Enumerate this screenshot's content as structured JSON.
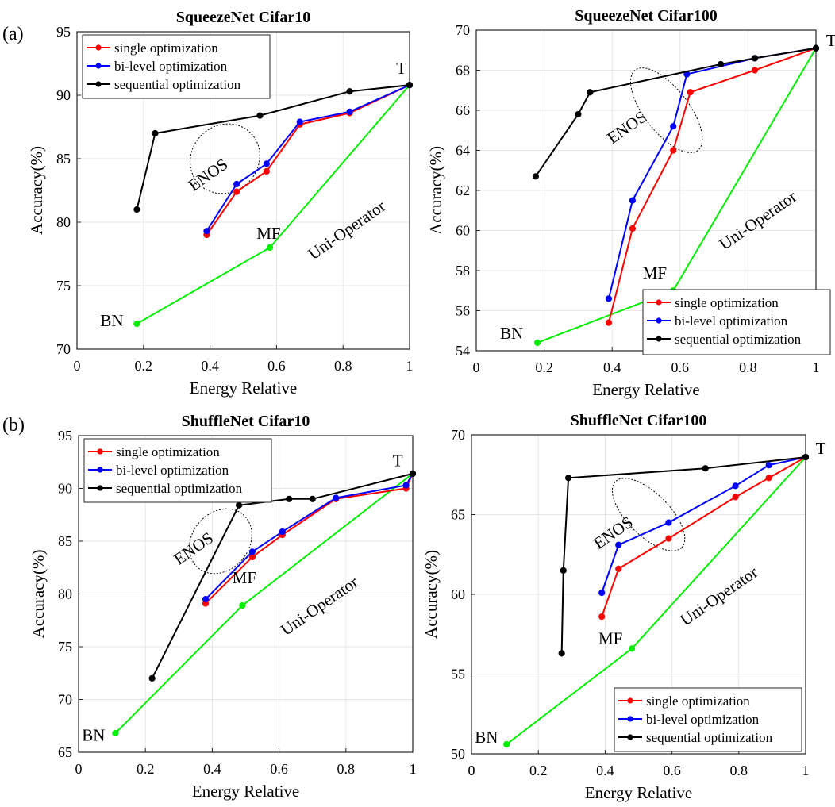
{
  "panel_labels": {
    "a": "(a)",
    "b": "(b)"
  },
  "chart_data": [
    {
      "type": "line",
      "title": "SqueezeNet Cifar10",
      "xlabel": "Energy Relative",
      "ylabel": "Accuracy(%)",
      "xlim": [
        0,
        1
      ],
      "ylim": [
        70,
        95
      ],
      "xticks": [
        0,
        0.2,
        0.4,
        0.6,
        0.8,
        1
      ],
      "xtick_labels": [
        "0",
        "0.2",
        "0.4",
        "0.6",
        "0.8",
        "1"
      ],
      "yticks": [
        70,
        75,
        80,
        85,
        90,
        95
      ],
      "ytick_labels": [
        "70",
        "75",
        "80",
        "85",
        "90",
        "95"
      ],
      "legend_position": "top-left",
      "series": [
        {
          "name": "single optimization",
          "color": "#ff0000",
          "x": [
            0.39,
            0.48,
            0.57,
            0.67,
            0.82,
            1.0
          ],
          "y": [
            79.0,
            82.4,
            84.0,
            87.7,
            88.6,
            90.8
          ]
        },
        {
          "name": "bi-level optimization",
          "color": "#0000ff",
          "x": [
            0.39,
            0.48,
            0.57,
            0.67,
            0.82,
            1.0
          ],
          "y": [
            79.3,
            83.0,
            84.6,
            87.9,
            88.7,
            90.8
          ]
        },
        {
          "name": "sequential optimization",
          "color": "#000000",
          "x": [
            0.18,
            0.235,
            0.55,
            0.82,
            1.0
          ],
          "y": [
            81.0,
            87.0,
            88.4,
            90.3,
            90.8
          ]
        },
        {
          "name": "Uni-Operator",
          "color": "#00ee00",
          "in_legend": false,
          "x": [
            0.18,
            0.58,
            1.0
          ],
          "y": [
            72.0,
            78.0,
            90.8
          ]
        }
      ],
      "annotations": [
        {
          "text": "T",
          "x": 0.96,
          "y": 91.7
        },
        {
          "text": "MF",
          "x": 0.54,
          "y": 78.7
        },
        {
          "text": "BN",
          "x": 0.07,
          "y": 71.8
        },
        {
          "text": "ENOS",
          "x": 0.35,
          "y": 82.4,
          "rotate": -35
        },
        {
          "text": "Uni-Operator",
          "x": 0.71,
          "y": 77.0,
          "rotate": -35
        }
      ],
      "ellipse": {
        "cx": 0.445,
        "cy": 85.0,
        "rx": 0.1,
        "ry": 1.3,
        "rotate": 45
      }
    },
    {
      "type": "line",
      "title": "SqueezeNet Cifar100",
      "xlabel": "Energy Relative",
      "ylabel": "Accuracy(%)",
      "xlim": [
        0,
        1
      ],
      "ylim": [
        54,
        70
      ],
      "xticks": [
        0,
        0.2,
        0.4,
        0.6,
        0.8,
        1
      ],
      "xtick_labels": [
        "0",
        "0.2",
        "0.4",
        "0.6",
        "0.8",
        "1"
      ],
      "yticks": [
        54,
        56,
        58,
        60,
        62,
        64,
        66,
        68,
        70
      ],
      "ytick_labels": [
        "54",
        "56",
        "58",
        "60",
        "62",
        "64",
        "66",
        "68",
        "70"
      ],
      "legend_position": "bottom-right",
      "series": [
        {
          "name": "single optimization",
          "color": "#ff0000",
          "x": [
            0.39,
            0.46,
            0.58,
            0.63,
            0.82,
            1.0
          ],
          "y": [
            55.4,
            60.1,
            64.0,
            66.9,
            68.0,
            69.1
          ]
        },
        {
          "name": "bi-level optimization",
          "color": "#0000ff",
          "x": [
            0.39,
            0.46,
            0.58,
            0.62,
            0.82,
            1.0
          ],
          "y": [
            56.6,
            61.5,
            65.2,
            67.8,
            68.6,
            69.1
          ]
        },
        {
          "name": "sequential optimization",
          "color": "#000000",
          "x": [
            0.175,
            0.3,
            0.335,
            0.72,
            0.82,
            1.0
          ],
          "y": [
            62.7,
            65.8,
            66.9,
            68.3,
            68.6,
            69.1
          ]
        },
        {
          "name": "Uni-Operator",
          "color": "#00ee00",
          "in_legend": false,
          "x": [
            0.18,
            0.58,
            1.0
          ],
          "y": [
            54.4,
            57.0,
            69.1
          ]
        }
      ],
      "annotations": [
        {
          "text": "T",
          "x": 1.03,
          "y": 69.2
        },
        {
          "text": "MF",
          "x": 0.49,
          "y": 57.6
        },
        {
          "text": "BN",
          "x": 0.07,
          "y": 54.6
        },
        {
          "text": "ENOS",
          "x": 0.4,
          "y": 64.3,
          "rotate": -35
        },
        {
          "text": "Uni-Operator",
          "x": 0.73,
          "y": 59.0,
          "rotate": -35
        }
      ],
      "ellipse": {
        "cx": 0.56,
        "cy": 66.0,
        "rx": 0.15,
        "ry": 0.5,
        "rotate": 52
      }
    },
    {
      "type": "line",
      "title": "ShuffleNet Cifar10",
      "xlabel": "Energy Relative",
      "ylabel": "Accuracy(%)",
      "xlim": [
        0,
        1
      ],
      "ylim": [
        65,
        95
      ],
      "xticks": [
        0,
        0.2,
        0.4,
        0.6,
        0.8,
        1
      ],
      "xtick_labels": [
        "0",
        "0.2",
        "0.4",
        "0.6",
        "0.8",
        "1"
      ],
      "yticks": [
        65,
        70,
        75,
        80,
        85,
        90,
        95
      ],
      "ytick_labels": [
        "65",
        "70",
        "75",
        "80",
        "85",
        "90",
        "95"
      ],
      "legend_position": "top-left",
      "series": [
        {
          "name": "single optimization",
          "color": "#ff0000",
          "x": [
            0.38,
            0.52,
            0.61,
            0.77,
            0.98,
            1.0
          ],
          "y": [
            79.1,
            83.5,
            85.6,
            89.0,
            90.0,
            91.4
          ]
        },
        {
          "name": "bi-level optimization",
          "color": "#0000ff",
          "x": [
            0.38,
            0.52,
            0.61,
            0.77,
            0.98,
            1.0
          ],
          "y": [
            79.5,
            84.0,
            85.9,
            89.1,
            90.3,
            91.4
          ]
        },
        {
          "name": "sequential optimization",
          "color": "#000000",
          "x": [
            0.22,
            0.48,
            0.63,
            0.7,
            1.0
          ],
          "y": [
            72.0,
            88.4,
            89.0,
            89.0,
            91.4
          ]
        },
        {
          "name": "Uni-Operator",
          "color": "#00ee00",
          "in_legend": false,
          "x": [
            0.11,
            0.49,
            1.0
          ],
          "y": [
            66.8,
            78.9,
            91.4
          ]
        }
      ],
      "annotations": [
        {
          "text": "T",
          "x": 0.94,
          "y": 92.1
        },
        {
          "text": "MF",
          "x": 0.46,
          "y": 81.0
        },
        {
          "text": "BN",
          "x": 0.01,
          "y": 66.1
        },
        {
          "text": "ENOS",
          "x": 0.3,
          "y": 82.7,
          "rotate": -35
        },
        {
          "text": "Uni-Operator",
          "x": 0.62,
          "y": 76.0,
          "rotate": -35
        }
      ],
      "ellipse": {
        "cx": 0.425,
        "cy": 85.0,
        "rx": 0.085,
        "ry": 1.5,
        "rotate": 40
      }
    },
    {
      "type": "line",
      "title": "ShuffleNet Cifar100",
      "xlabel": "Energy Relative",
      "ylabel": "Accuracy(%)",
      "xlim": [
        0,
        1
      ],
      "ylim": [
        50,
        70
      ],
      "xticks": [
        0,
        0.2,
        0.4,
        0.6,
        0.8,
        1
      ],
      "xtick_labels": [
        "0",
        "0.2",
        "0.4",
        "0.6",
        "0.8",
        "1"
      ],
      "yticks": [
        50,
        55,
        60,
        65,
        70
      ],
      "ytick_labels": [
        "50",
        "55",
        "60",
        "65",
        "70"
      ],
      "legend_position": "bottom-right",
      "series": [
        {
          "name": "single optimization",
          "color": "#ff0000",
          "x": [
            0.39,
            0.44,
            0.59,
            0.79,
            0.89,
            1.0
          ],
          "y": [
            58.6,
            61.6,
            63.5,
            66.1,
            67.3,
            68.6
          ]
        },
        {
          "name": "bi-level optimization",
          "color": "#0000ff",
          "x": [
            0.39,
            0.44,
            0.59,
            0.79,
            0.89,
            1.0
          ],
          "y": [
            60.1,
            63.1,
            64.5,
            66.8,
            68.1,
            68.6
          ]
        },
        {
          "name": "sequential optimization",
          "color": "#000000",
          "x": [
            0.27,
            0.275,
            0.29,
            0.7,
            1.0
          ],
          "y": [
            56.3,
            61.5,
            67.3,
            67.9,
            68.6
          ]
        },
        {
          "name": "Uni-Operator",
          "color": "#00ee00",
          "in_legend": false,
          "x": [
            0.105,
            0.48,
            1.0
          ],
          "y": [
            50.6,
            56.6,
            68.6
          ]
        }
      ],
      "annotations": [
        {
          "text": "T",
          "x": 1.03,
          "y": 68.8
        },
        {
          "text": "MF",
          "x": 0.38,
          "y": 56.9
        },
        {
          "text": "BN",
          "x": 0.01,
          "y": 50.7
        },
        {
          "text": "ENOS",
          "x": 0.38,
          "y": 62.8,
          "rotate": -35
        },
        {
          "text": "Uni-Operator",
          "x": 0.64,
          "y": 58.0,
          "rotate": -35
        }
      ],
      "ellipse": {
        "cx": 0.53,
        "cy": 65.0,
        "rx": 0.14,
        "ry": 0.6,
        "rotate": 45
      }
    }
  ]
}
